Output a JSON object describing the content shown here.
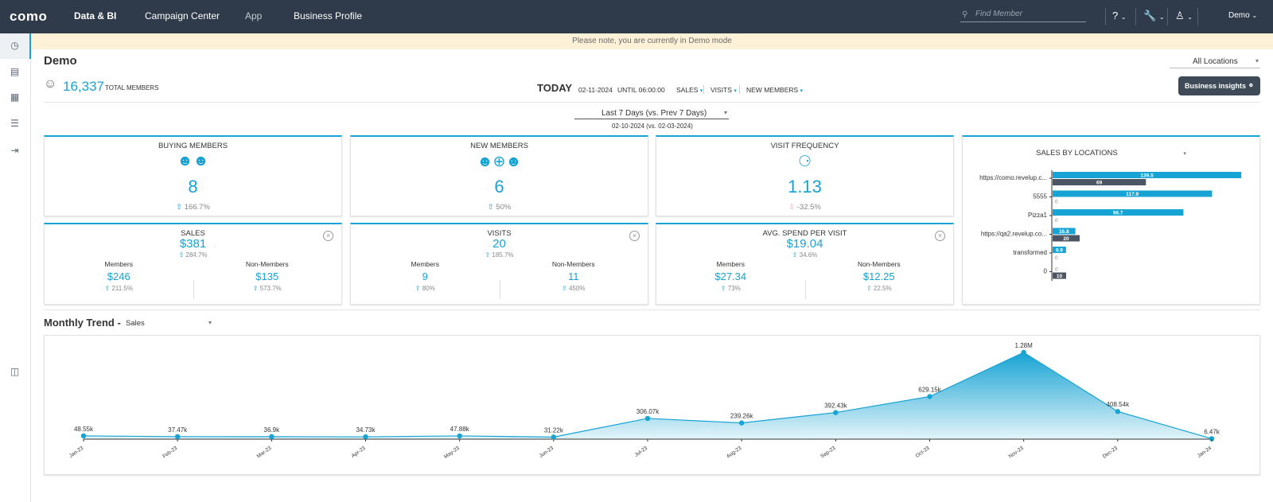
{
  "topbar": {
    "logo": "como",
    "nav": [
      "Data & BI",
      "Campaign Center",
      "App",
      "Business Profile"
    ],
    "search_placeholder": "Find Member",
    "help_icon": "?",
    "user": "Demo"
  },
  "banner": "Please note, you are currently in Demo mode",
  "page_title": "Demo",
  "location_select": "All Locations",
  "summary": {
    "total_members": "16,337",
    "total_members_label": "TOTAL MEMBERS",
    "today": "TODAY",
    "date": "02-11-2024",
    "until": "UNTIL 06:00:00",
    "links": [
      "SALES",
      "VISITS",
      "NEW MEMBERS"
    ]
  },
  "business_insights": "Business insights",
  "period": {
    "select": "Last 7 Days (vs. Prev 7 Days)",
    "range": "02-10-2024 (vs. 02-03-2024)"
  },
  "kpis": [
    {
      "title": "BUYING MEMBERS",
      "value": "8",
      "change": "166.7%",
      "icon": "members-group-icon"
    },
    {
      "title": "NEW MEMBERS",
      "value": "6",
      "change": "50%",
      "icon": "new-members-icon"
    },
    {
      "title": "VISIT FREQUENCY",
      "value": "1.13",
      "change": "-32.5%",
      "icon": "heartbeat-icon"
    }
  ],
  "split_kpis": [
    {
      "title": "SALES",
      "value": "$381",
      "change": "284.7%",
      "members_label": "Members",
      "members_value": "$246",
      "members_change": "211.5%",
      "non_label": "Non-Members",
      "non_value": "$135",
      "non_change": "573.7%"
    },
    {
      "title": "VISITS",
      "value": "20",
      "change": "185.7%",
      "members_label": "Members",
      "members_value": "9",
      "members_change": "80%",
      "non_label": "Non-Members",
      "non_value": "11",
      "non_change": "450%"
    },
    {
      "title": "AVG. SPEND PER VISIT",
      "value": "$19.04",
      "change": "34.6%",
      "members_label": "Members",
      "members_value": "$27.34",
      "members_change": "73%",
      "non_label": "Non-Members",
      "non_value": "$12.25",
      "non_change": "22.5%"
    }
  ],
  "colors": {
    "accent": "#17a3d3",
    "secondary_bar": "#4b5563",
    "topbar": "#2f3b4a",
    "negative": "#e7a5b8"
  },
  "trend": {
    "title": "Monthly Trend -",
    "metric": "Sales"
  },
  "chart_data": [
    {
      "type": "bar",
      "title": "SALES BY LOCATIONS",
      "orientation": "horizontal",
      "categories": [
        "https://como.revelup.c...",
        "5555",
        "Pizza1",
        "https://qa2.revelup.co...",
        "transformed",
        "0"
      ],
      "series": [
        {
          "values": [
            139.5,
            117.9,
            96.7,
            16.8,
            9.9,
            0
          ],
          "color": "#17a3d3"
        },
        {
          "values": [
            69,
            0,
            0,
            20,
            0,
            10
          ],
          "color": "#4b5563"
        }
      ],
      "xlim": [
        0,
        140
      ]
    },
    {
      "type": "area",
      "title": "",
      "categories": [
        "Jan-23",
        "Feb-23",
        "Mar-23",
        "Apr-23",
        "May-23",
        "Jun-23",
        "Jul-23",
        "Aug-23",
        "Sep-23",
        "Oct-23",
        "Nov-23",
        "Dec-23",
        "Jan-24"
      ],
      "values": [
        48550,
        37470,
        36900,
        34730,
        47880,
        31220,
        306070,
        239260,
        392430,
        629150,
        1280000,
        408540,
        6470
      ],
      "labels": [
        "48.55k",
        "37.47k",
        "36.9k",
        "34.73k",
        "47.88k",
        "31.22k",
        "306.07k",
        "239.26k",
        "392.43k",
        "629.15k",
        "1.28M",
        "408.54k",
        "6.47k"
      ],
      "ylim": [
        0,
        1280000
      ]
    }
  ]
}
